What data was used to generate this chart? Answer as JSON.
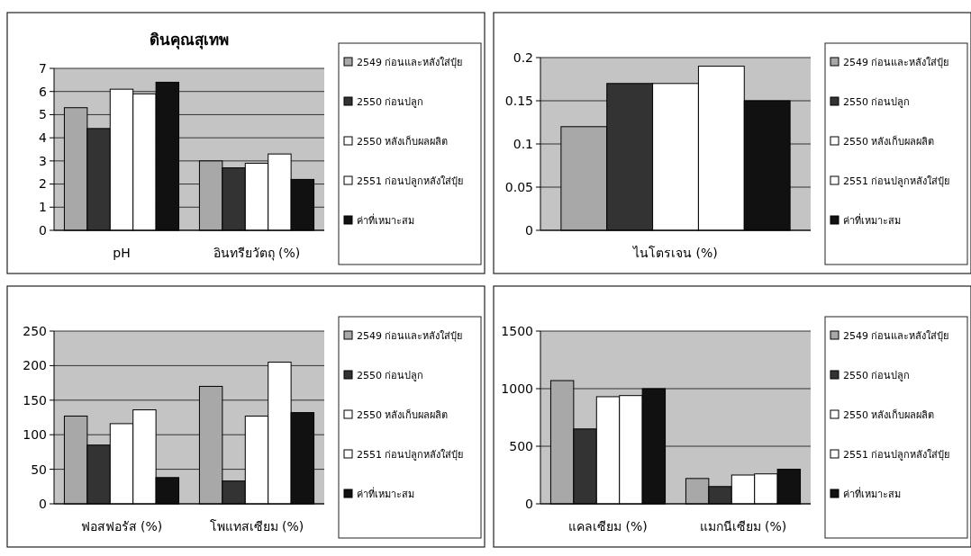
{
  "chart_data": [
    {
      "type": "bar",
      "title": "ดินคุณสุเทพ",
      "categories": [
        "pH",
        "อินทรียวัตถุ (%)"
      ],
      "series": [
        {
          "name": "2549 ก่อนและหลังใส่ปุ๋ย",
          "color": "#a8a8a8",
          "values": [
            5.3,
            3.0
          ]
        },
        {
          "name": "2550 ก่อนปลูก",
          "color": "#333333",
          "values": [
            4.4,
            2.7
          ]
        },
        {
          "name": "2550 หลังเก็บผลผลิต",
          "color": "#ffffff",
          "values": [
            6.1,
            2.9
          ]
        },
        {
          "name": "2551 ก่อนปลูกหลังใส่ปุ๋ย",
          "color": "#ffffff",
          "values": [
            5.9,
            3.3
          ]
        },
        {
          "name": "ค่าที่เหมาะสม",
          "color": "#111111",
          "values": [
            6.4,
            2.2
          ]
        }
      ],
      "ylim": [
        0,
        7
      ],
      "yticks": [
        0,
        1,
        2,
        3,
        4,
        5,
        6,
        7
      ],
      "grid": "y",
      "legend": "right"
    },
    {
      "type": "bar",
      "categories": [
        "ไนโตรเจน (%)"
      ],
      "series": [
        {
          "name": "2549 ก่อนและหลังใส่ปุ๋ย",
          "color": "#a8a8a8",
          "values": [
            0.12
          ]
        },
        {
          "name": "2550 ก่อนปลูก",
          "color": "#333333",
          "values": [
            0.17
          ]
        },
        {
          "name": "2550 หลังเก็บผลผลิต",
          "color": "#ffffff",
          "values": [
            0.17
          ]
        },
        {
          "name": "2551 ก่อนปลูกหลังใส่ปุ๋ย",
          "color": "#ffffff",
          "values": [
            0.19
          ]
        },
        {
          "name": "ค่าที่เหมาะสม",
          "color": "#111111",
          "values": [
            0.15
          ]
        }
      ],
      "ylim": [
        0,
        0.2
      ],
      "yticks": [
        0,
        0.05,
        0.1,
        0.15,
        0.2
      ],
      "grid": "y",
      "legend": "right"
    },
    {
      "type": "bar",
      "categories": [
        "ฟอสฟอรัส (%)",
        "โพแทสเซียม (%)"
      ],
      "series": [
        {
          "name": "2549 ก่อนและหลังใส่ปุ๋ย",
          "color": "#a8a8a8",
          "values": [
            127,
            170
          ]
        },
        {
          "name": "2550 ก่อนปลูก",
          "color": "#333333",
          "values": [
            85,
            33
          ]
        },
        {
          "name": "2550 หลังเก็บผลผลิต",
          "color": "#ffffff",
          "values": [
            116,
            127
          ]
        },
        {
          "name": "2551 ก่อนปลูกหลังใส่ปุ๋ย",
          "color": "#ffffff",
          "values": [
            136,
            205
          ]
        },
        {
          "name": "ค่าที่เหมาะสม",
          "color": "#111111",
          "values": [
            38,
            132
          ]
        }
      ],
      "ylim": [
        0,
        250
      ],
      "yticks": [
        0,
        50,
        100,
        150,
        200,
        250
      ],
      "grid": "y",
      "legend": "right"
    },
    {
      "type": "bar",
      "categories": [
        "แคลเซียม (%)",
        "แมกนีเซียม (%)"
      ],
      "series": [
        {
          "name": "2549 ก่อนและหลังใส่ปุ๋ย",
          "color": "#a8a8a8",
          "values": [
            1070,
            220
          ]
        },
        {
          "name": "2550 ก่อนปลูก",
          "color": "#333333",
          "values": [
            650,
            150
          ]
        },
        {
          "name": "2550 หลังเก็บผลผลิต",
          "color": "#ffffff",
          "values": [
            930,
            250
          ]
        },
        {
          "name": "2551 ก่อนปลูกหลังใส่ปุ๋ย",
          "color": "#ffffff",
          "values": [
            940,
            260
          ]
        },
        {
          "name": "ค่าที่เหมาะสม",
          "color": "#111111",
          "values": [
            1000,
            300
          ]
        }
      ],
      "ylim": [
        0,
        1500
      ],
      "yticks": [
        0,
        500,
        1000,
        1500
      ],
      "grid": "y",
      "legend": "right"
    }
  ]
}
